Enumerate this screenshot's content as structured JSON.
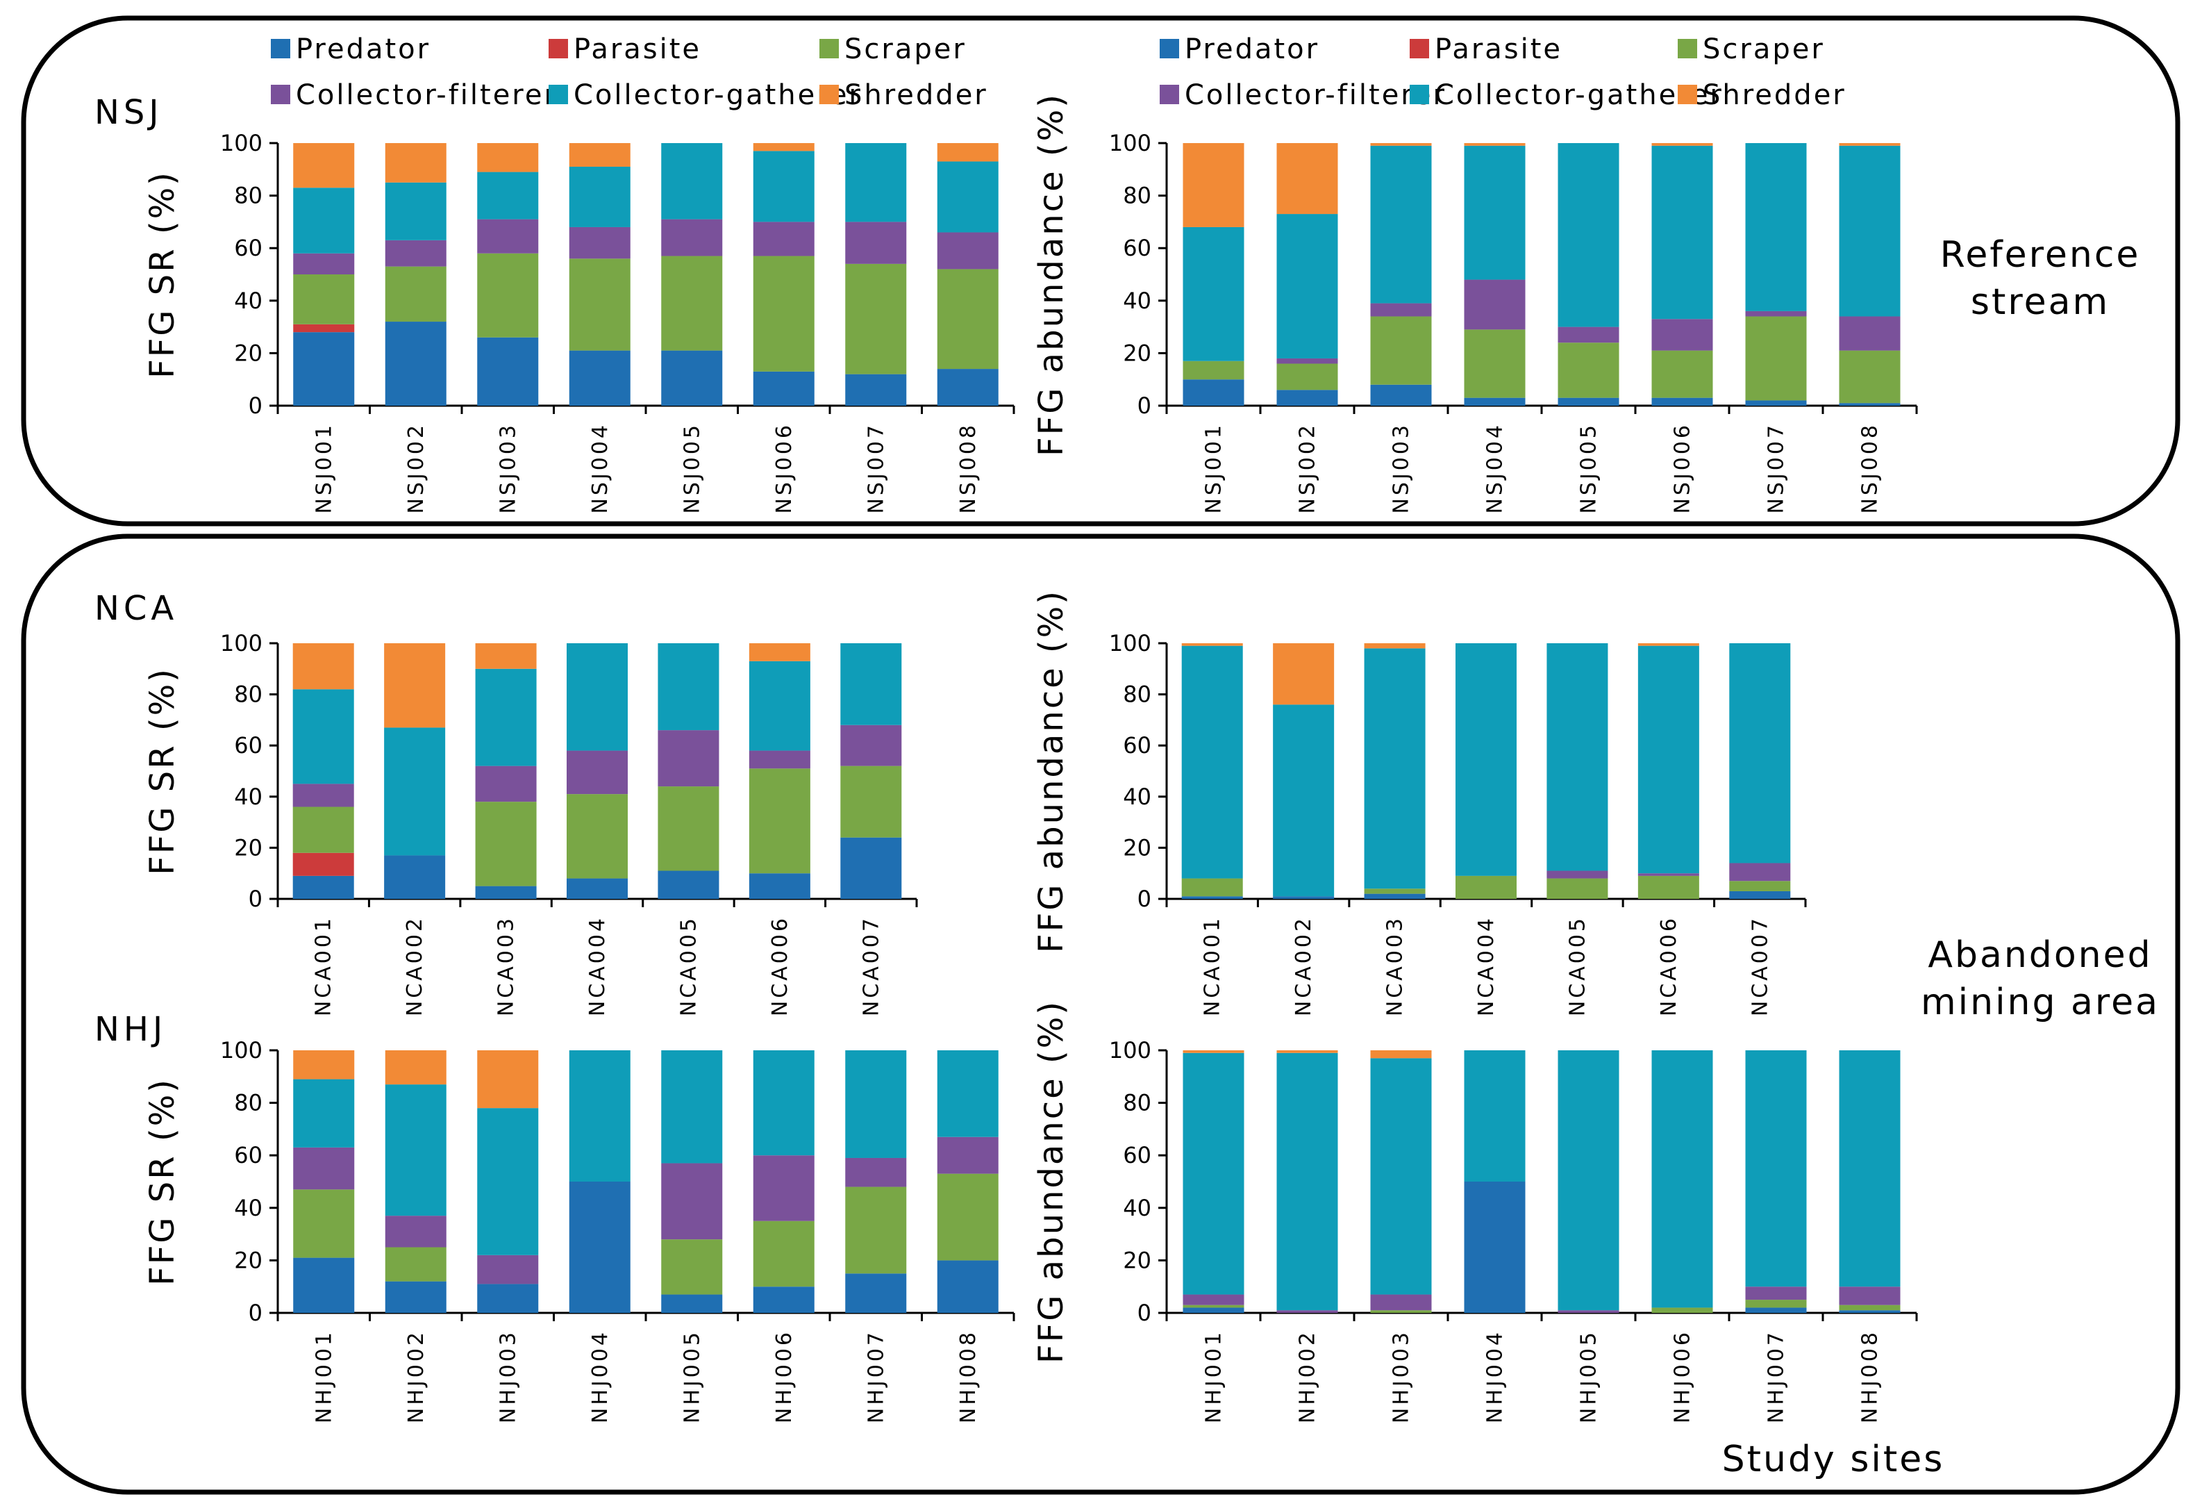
{
  "group_labels": {
    "nsj": "NSJ",
    "nca": "NCA",
    "nhj": "NHJ"
  },
  "side_labels": {
    "reference_line1": "Reference",
    "reference_line2": "stream",
    "abandoned_line1": "Abandoned",
    "abandoned_line2": "mining area",
    "study_sites": "Study sites"
  },
  "legend": [
    {
      "name": "Predator",
      "color": "#1f6fb2"
    },
    {
      "name": "Parasite",
      "color": "#cc3b3b"
    },
    {
      "name": "Scraper",
      "color": "#79a746"
    },
    {
      "name": "Collector-filterer",
      "color": "#7a519a"
    },
    {
      "name": "Collector-gatherer",
      "color": "#0f9db8"
    },
    {
      "name": "Shredder",
      "color": "#f28a36"
    }
  ],
  "axis_labels": {
    "sr": "FFG SR (%)",
    "abundance": "FFG abundance (%)"
  },
  "chart_data": [
    {
      "id": "nsj-sr",
      "type": "bar",
      "stacked": true,
      "ylabel": "FFG SR (%)",
      "ylim": [
        0,
        100
      ],
      "yticks": [
        0,
        20,
        40,
        60,
        80,
        100
      ],
      "categories": [
        "NSJ001",
        "NSJ002",
        "NSJ003",
        "NSJ004",
        "NSJ005",
        "NSJ006",
        "NSJ007",
        "NSJ008"
      ],
      "series": [
        {
          "name": "Predator",
          "values": [
            28,
            32,
            26,
            21,
            21,
            13,
            12,
            14
          ]
        },
        {
          "name": "Parasite",
          "values": [
            3,
            0,
            0,
            0,
            0,
            0,
            0,
            0
          ]
        },
        {
          "name": "Scraper",
          "values": [
            19,
            21,
            32,
            35,
            36,
            44,
            42,
            38
          ]
        },
        {
          "name": "Collector-filterer",
          "values": [
            8,
            10,
            13,
            12,
            14,
            13,
            16,
            14
          ]
        },
        {
          "name": "Collector-gatherer",
          "values": [
            25,
            22,
            18,
            23,
            29,
            27,
            30,
            27
          ]
        },
        {
          "name": "Shredder",
          "values": [
            17,
            15,
            11,
            9,
            0,
            3,
            0,
            7
          ]
        }
      ]
    },
    {
      "id": "nsj-ab",
      "type": "bar",
      "stacked": true,
      "ylabel": "FFG abundance (%)",
      "ylim": [
        0,
        100
      ],
      "yticks": [
        0,
        20,
        40,
        60,
        80,
        100
      ],
      "categories": [
        "NSJ001",
        "NSJ002",
        "NSJ003",
        "NSJ004",
        "NSJ005",
        "NSJ006",
        "NSJ007",
        "NSJ008"
      ],
      "series": [
        {
          "name": "Predator",
          "values": [
            10,
            6,
            8,
            3,
            3,
            3,
            2,
            1
          ]
        },
        {
          "name": "Parasite",
          "values": [
            0,
            0,
            0,
            0,
            0,
            0,
            0,
            0
          ]
        },
        {
          "name": "Scraper",
          "values": [
            7,
            10,
            26,
            26,
            21,
            18,
            32,
            20
          ]
        },
        {
          "name": "Collector-filterer",
          "values": [
            0,
            2,
            5,
            19,
            6,
            12,
            2,
            13
          ]
        },
        {
          "name": "Collector-gatherer",
          "values": [
            51,
            55,
            60,
            51,
            70,
            66,
            64,
            65
          ]
        },
        {
          "name": "Shredder",
          "values": [
            32,
            27,
            1,
            1,
            0,
            1,
            0,
            1
          ]
        }
      ]
    },
    {
      "id": "nca-sr",
      "type": "bar",
      "stacked": true,
      "ylabel": "FFG SR (%)",
      "ylim": [
        0,
        100
      ],
      "yticks": [
        0,
        20,
        40,
        60,
        80,
        100
      ],
      "categories": [
        "NCA001",
        "NCA002",
        "NCA003",
        "NCA004",
        "NCA005",
        "NCA006",
        "NCA007"
      ],
      "series": [
        {
          "name": "Predator",
          "values": [
            9,
            17,
            5,
            8,
            11,
            10,
            24
          ]
        },
        {
          "name": "Parasite",
          "values": [
            9,
            0,
            0,
            0,
            0,
            0,
            0
          ]
        },
        {
          "name": "Scraper",
          "values": [
            18,
            0,
            33,
            33,
            33,
            41,
            28
          ]
        },
        {
          "name": "Collector-filterer",
          "values": [
            9,
            0,
            14,
            17,
            22,
            7,
            16
          ]
        },
        {
          "name": "Collector-gatherer",
          "values": [
            37,
            50,
            38,
            42,
            34,
            35,
            32
          ]
        },
        {
          "name": "Shredder",
          "values": [
            18,
            33,
            10,
            0,
            0,
            7,
            0
          ]
        }
      ]
    },
    {
      "id": "nca-ab",
      "type": "bar",
      "stacked": true,
      "ylabel": "FFG abundance (%)",
      "ylim": [
        0,
        100
      ],
      "yticks": [
        0,
        20,
        40,
        60,
        80,
        100
      ],
      "categories": [
        "NCA001",
        "NCA002",
        "NCA003",
        "NCA004",
        "NCA005",
        "NCA006",
        "NCA007"
      ],
      "series": [
        {
          "name": "Predator",
          "values": [
            1,
            1,
            2,
            0,
            0,
            0,
            3
          ]
        },
        {
          "name": "Parasite",
          "values": [
            0,
            0,
            0,
            0,
            0,
            0,
            0
          ]
        },
        {
          "name": "Scraper",
          "values": [
            7,
            0,
            2,
            9,
            8,
            9,
            4
          ]
        },
        {
          "name": "Collector-filterer",
          "values": [
            0,
            0,
            0,
            0,
            3,
            1,
            7
          ]
        },
        {
          "name": "Collector-gatherer",
          "values": [
            91,
            75,
            94,
            91,
            89,
            89,
            86
          ]
        },
        {
          "name": "Shredder",
          "values": [
            1,
            24,
            2,
            0,
            0,
            1,
            0
          ]
        }
      ]
    },
    {
      "id": "nhj-sr",
      "type": "bar",
      "stacked": true,
      "ylabel": "FFG SR (%)",
      "ylim": [
        0,
        100
      ],
      "yticks": [
        0,
        20,
        40,
        60,
        80,
        100
      ],
      "categories": [
        "NHJ001",
        "NHJ002",
        "NHJ003",
        "NHJ004",
        "NHJ005",
        "NHJ006",
        "NHJ007",
        "NHJ008"
      ],
      "series": [
        {
          "name": "Predator",
          "values": [
            21,
            12,
            11,
            50,
            7,
            10,
            15,
            20
          ]
        },
        {
          "name": "Parasite",
          "values": [
            0,
            0,
            0,
            0,
            0,
            0,
            0,
            0
          ]
        },
        {
          "name": "Scraper",
          "values": [
            26,
            13,
            0,
            0,
            21,
            25,
            33,
            33
          ]
        },
        {
          "name": "Collector-filterer",
          "values": [
            16,
            12,
            11,
            0,
            29,
            25,
            11,
            14
          ]
        },
        {
          "name": "Collector-gatherer",
          "values": [
            26,
            50,
            56,
            50,
            43,
            40,
            41,
            33
          ]
        },
        {
          "name": "Shredder",
          "values": [
            11,
            13,
            22,
            0,
            0,
            0,
            0,
            0
          ]
        }
      ]
    },
    {
      "id": "nhj-ab",
      "type": "bar",
      "stacked": true,
      "ylabel": "FFG abundance (%)",
      "ylim": [
        0,
        100
      ],
      "yticks": [
        0,
        20,
        40,
        60,
        80,
        100
      ],
      "categories": [
        "NHJ001",
        "NHJ002",
        "NHJ003",
        "NHJ004",
        "NHJ005",
        "NHJ006",
        "NHJ007",
        "NHJ008"
      ],
      "series": [
        {
          "name": "Predator",
          "values": [
            2,
            0,
            0,
            50,
            0,
            0,
            2,
            1
          ]
        },
        {
          "name": "Parasite",
          "values": [
            0,
            0,
            0,
            0,
            0,
            0,
            0,
            0
          ]
        },
        {
          "name": "Scraper",
          "values": [
            1,
            0,
            1,
            0,
            0,
            2,
            3,
            2
          ]
        },
        {
          "name": "Collector-filterer",
          "values": [
            4,
            1,
            6,
            0,
            1,
            0,
            5,
            7
          ]
        },
        {
          "name": "Collector-gatherer",
          "values": [
            92,
            98,
            90,
            50,
            99,
            98,
            90,
            90
          ]
        },
        {
          "name": "Shredder",
          "values": [
            1,
            1,
            3,
            0,
            0,
            0,
            0,
            0
          ]
        }
      ]
    }
  ]
}
